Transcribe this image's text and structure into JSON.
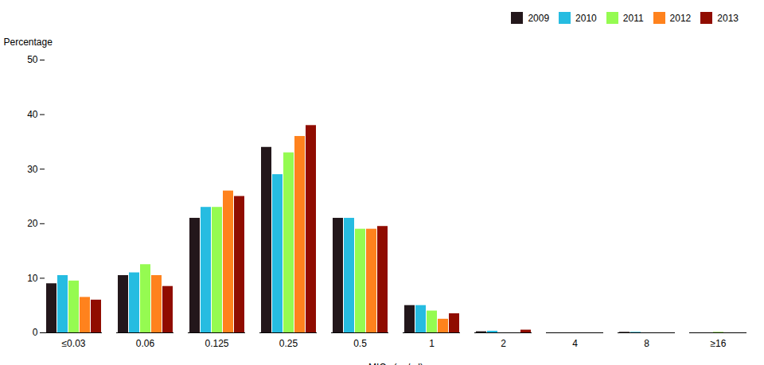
{
  "chart_data": {
    "type": "bar",
    "categories": [
      "≤0.03",
      "0.06",
      "0.125",
      "0.25",
      "0.5",
      "1",
      "2",
      "4",
      "8",
      "≥16"
    ],
    "series": [
      {
        "name": "2009",
        "values": [
          9,
          10.5,
          21,
          34,
          21,
          5,
          0.2,
          0,
          0.1,
          0
        ]
      },
      {
        "name": "2010",
        "values": [
          10.5,
          11,
          23,
          29,
          21,
          5,
          0.3,
          0,
          0.1,
          0
        ]
      },
      {
        "name": "2011",
        "values": [
          9.5,
          12.5,
          23,
          33,
          19,
          4,
          0,
          0,
          0,
          0.1
        ]
      },
      {
        "name": "2012",
        "values": [
          6.5,
          10.5,
          26,
          36,
          19,
          2.5,
          0,
          0,
          0,
          0
        ]
      },
      {
        "name": "2013",
        "values": [
          6,
          8.5,
          25,
          38,
          19.5,
          3.5,
          0.5,
          0,
          0,
          0
        ]
      }
    ],
    "xlabel": "MICs (μg/ml)",
    "ylabel": "Percentage",
    "ylim": [
      0,
      50
    ],
    "yticks": [
      0,
      10,
      20,
      30,
      40,
      50
    ],
    "grid": false,
    "legend": "upper right"
  }
}
